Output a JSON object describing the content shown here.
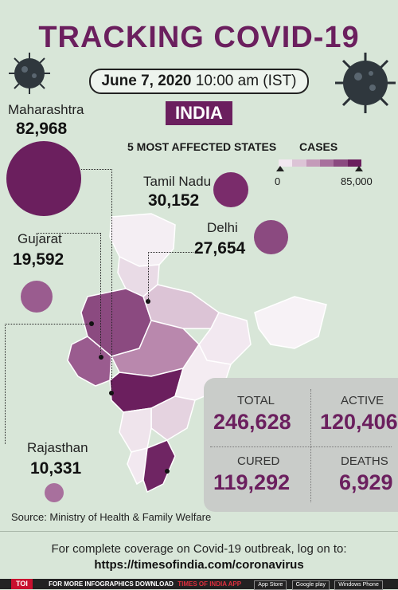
{
  "title": "TRACKING COVID-19",
  "date": "June 7, 2020",
  "time": "10:00 am (IST)",
  "country": "INDIA",
  "subtitle": "5 MOST AFFECTED STATES",
  "legend": {
    "title": "CASES",
    "min": "0",
    "max": "85,000",
    "colors": [
      "#f2e8f0",
      "#dcc4d6",
      "#c49ab9",
      "#a8709d",
      "#8b4a80",
      "#6b1f5e"
    ]
  },
  "states": [
    {
      "name": "Maharashtra",
      "cases": "82,968",
      "value": 82968
    },
    {
      "name": "Tamil Nadu",
      "cases": "30,152",
      "value": 30152
    },
    {
      "name": "Delhi",
      "cases": "27,654",
      "value": 27654
    },
    {
      "name": "Gujarat",
      "cases": "19,592",
      "value": 19592
    },
    {
      "name": "Rajasthan",
      "cases": "10,331",
      "value": 10331
    }
  ],
  "totals": {
    "total_label": "TOTAL",
    "total": "246,628",
    "active_label": "ACTIVE",
    "active": "120,406",
    "cured_label": "CURED",
    "cured": "119,292",
    "deaths_label": "DEATHS",
    "deaths": "6,929"
  },
  "source": "Source: Ministry of Health & Family Welfare",
  "footer": {
    "line1": "For complete coverage on Covid-19 outbreak, log on to:",
    "line2": "https://timesofindia.com/coronavirus"
  },
  "bottombar": {
    "brand": "TOI",
    "text": "FOR MORE INFOGRAPHICS DOWNLOAD",
    "app": "TIMES OF INDIA APP",
    "badges": [
      "App Store",
      "Google play",
      "Windows Phone"
    ]
  },
  "colors": {
    "accent": "#6b1f5e",
    "background": "#d8e6d8"
  }
}
